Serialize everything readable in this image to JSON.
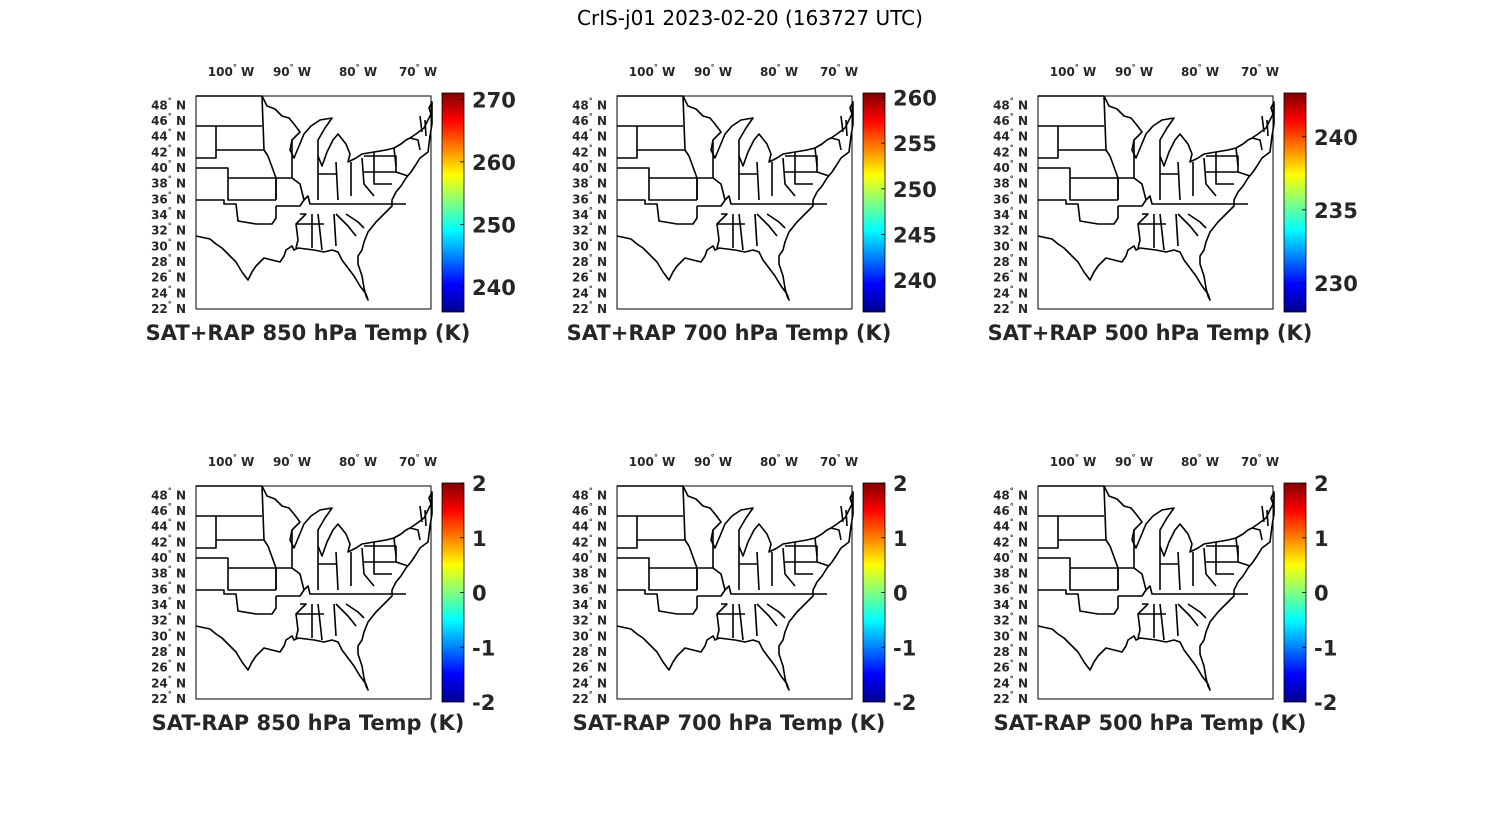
{
  "title": "CrIS-j01 2023-02-20 (163727 UTC)",
  "lon_ticks": [
    {
      "value": -100,
      "label": "100",
      "hemi": "W"
    },
    {
      "value": -90,
      "label": "90",
      "hemi": "W"
    },
    {
      "value": -80,
      "label": "80",
      "hemi": "W"
    },
    {
      "value": -70,
      "label": "70",
      "hemi": "W"
    }
  ],
  "lat_ticks": [
    {
      "value": 48,
      "label": "48",
      "hemi": "N"
    },
    {
      "value": 46,
      "label": "46",
      "hemi": "N"
    },
    {
      "value": 44,
      "label": "44",
      "hemi": "N"
    },
    {
      "value": 42,
      "label": "42",
      "hemi": "N"
    },
    {
      "value": 40,
      "label": "40",
      "hemi": "N"
    },
    {
      "value": 38,
      "label": "38",
      "hemi": "N"
    },
    {
      "value": 36,
      "label": "36",
      "hemi": "N"
    },
    {
      "value": 34,
      "label": "34",
      "hemi": "N"
    },
    {
      "value": 32,
      "label": "32",
      "hemi": "N"
    },
    {
      "value": 30,
      "label": "30",
      "hemi": "N"
    },
    {
      "value": 28,
      "label": "28",
      "hemi": "N"
    },
    {
      "value": 26,
      "label": "26",
      "hemi": "N"
    },
    {
      "value": 24,
      "label": "24",
      "hemi": "N"
    },
    {
      "value": 22,
      "label": "22",
      "hemi": "N"
    }
  ],
  "colormap": "jet",
  "panels": [
    {
      "title": "SAT+RAP 850 hPa Temp (K)",
      "colorbar": {
        "min": 236,
        "max": 271,
        "ticks": [
          240,
          250,
          260,
          270
        ]
      }
    },
    {
      "title": "SAT+RAP 700 hPa Temp (K)",
      "colorbar": {
        "min": 236.5,
        "max": 260.5,
        "ticks": [
          240,
          245,
          250,
          255,
          260
        ]
      }
    },
    {
      "title": "SAT+RAP 500 hPa Temp (K)",
      "colorbar": {
        "min": 228,
        "max": 243,
        "ticks": [
          230,
          235,
          240
        ]
      }
    },
    {
      "title": "SAT-RAP 850 hPa Temp (K)",
      "colorbar": {
        "min": -2,
        "max": 2,
        "ticks": [
          2,
          1,
          0,
          -1,
          -2
        ]
      }
    },
    {
      "title": "SAT-RAP 700 hPa Temp (K)",
      "colorbar": {
        "min": -2,
        "max": 2,
        "ticks": [
          2,
          1,
          0,
          -1,
          -2
        ]
      }
    },
    {
      "title": "SAT-RAP 500 hPa Temp (K)",
      "colorbar": {
        "min": -2,
        "max": 2,
        "ticks": [
          2,
          1,
          0,
          -1,
          -2
        ]
      }
    }
  ]
}
